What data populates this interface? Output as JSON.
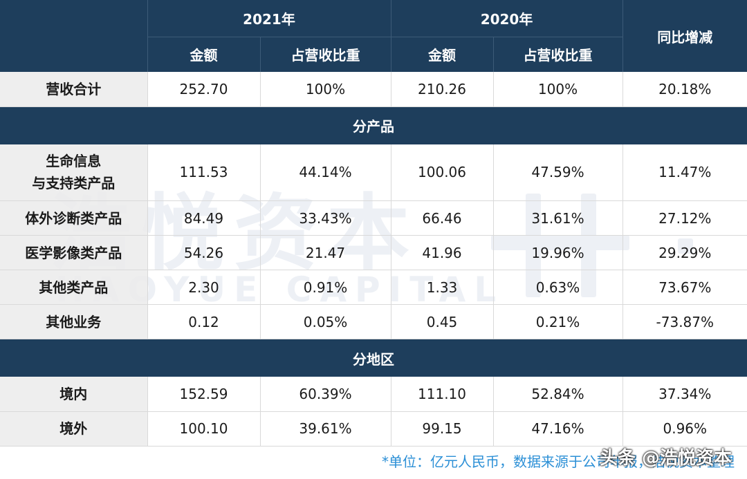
{
  "header": {
    "year1": "2021年",
    "year2": "2020年",
    "yoy": "同比增减",
    "amount": "金额",
    "share": "占营收比重"
  },
  "total": {
    "label": "营收合计",
    "cells": [
      "252.70",
      "100%",
      "210.26",
      "100%",
      "20.18%"
    ]
  },
  "sections": [
    {
      "title": "分产品",
      "rows": [
        {
          "label_lines": [
            "生命信息",
            "与支持类产品"
          ],
          "cells": [
            "111.53",
            "44.14%",
            "100.06",
            "47.59%",
            "11.47%"
          ]
        },
        {
          "label_lines": [
            "体外诊断类产品"
          ],
          "cells": [
            "84.49",
            "33.43%",
            "66.46",
            "31.61%",
            "27.12%"
          ]
        },
        {
          "label_lines": [
            "医学影像类产品"
          ],
          "cells": [
            "54.26",
            "21.47",
            "41.96",
            "19.96%",
            "29.29%"
          ]
        },
        {
          "label_lines": [
            "其他类产品"
          ],
          "cells": [
            "2.30",
            "0.91%",
            "1.33",
            "0.63%",
            "73.67%"
          ]
        },
        {
          "label_lines": [
            "其他业务"
          ],
          "cells": [
            "0.12",
            "0.05%",
            "0.45",
            "0.21%",
            "-73.87%"
          ]
        }
      ]
    },
    {
      "title": "分地区",
      "rows": [
        {
          "label_lines": [
            "境内"
          ],
          "cells": [
            "152.59",
            "60.39%",
            "111.10",
            "52.84%",
            "37.34%"
          ]
        },
        {
          "label_lines": [
            "境外"
          ],
          "cells": [
            "100.10",
            "39.61%",
            "99.15",
            "47.16%",
            "0.96%"
          ]
        }
      ]
    }
  ],
  "footnote": "*单位：亿元人民币，数据来源于公司年报，浩悦资本整理",
  "brand_overlay": "头条 @浩悦资本",
  "watermark": {
    "cn": "浩悦资本",
    "en": "HAOYUE CAPITAL"
  },
  "colors": {
    "header_bg": "#1e3e5c",
    "label_bg": "#ebebeb",
    "footnote": "#2b8fd6"
  }
}
